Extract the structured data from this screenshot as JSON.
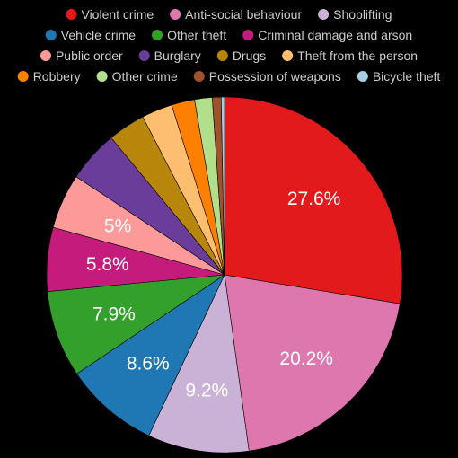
{
  "chart_data": {
    "type": "pie",
    "legend_position": "top",
    "show_labels_min_percent": 5,
    "slices": [
      {
        "label": "Violent crime",
        "value": 27.6,
        "color": "#e31a1c"
      },
      {
        "label": "Anti-social behaviour",
        "value": 20.2,
        "color": "#de77ae"
      },
      {
        "label": "Shoplifting",
        "value": 9.2,
        "color": "#cab2d6"
      },
      {
        "label": "Vehicle crime",
        "value": 8.6,
        "color": "#1f78b4"
      },
      {
        "label": "Other theft",
        "value": 7.9,
        "color": "#33a02c"
      },
      {
        "label": "Criminal damage and arson",
        "value": 5.8,
        "color": "#c51b7d"
      },
      {
        "label": "Public order",
        "value": 5.0,
        "color": "#fb9a99"
      },
      {
        "label": "Burglary",
        "value": 4.7,
        "color": "#6a3d9a"
      },
      {
        "label": "Drugs",
        "value": 3.4,
        "color": "#b8860b"
      },
      {
        "label": "Theft from the person",
        "value": 2.8,
        "color": "#fdbf6f"
      },
      {
        "label": "Robbery",
        "value": 2.1,
        "color": "#ff7f00"
      },
      {
        "label": "Other crime",
        "value": 1.6,
        "color": "#b2df8a"
      },
      {
        "label": "Possession of weapons",
        "value": 0.8,
        "color": "#a0522d"
      },
      {
        "label": "Bicycle theft",
        "value": 0.3,
        "color": "#a6cee3"
      }
    ]
  }
}
